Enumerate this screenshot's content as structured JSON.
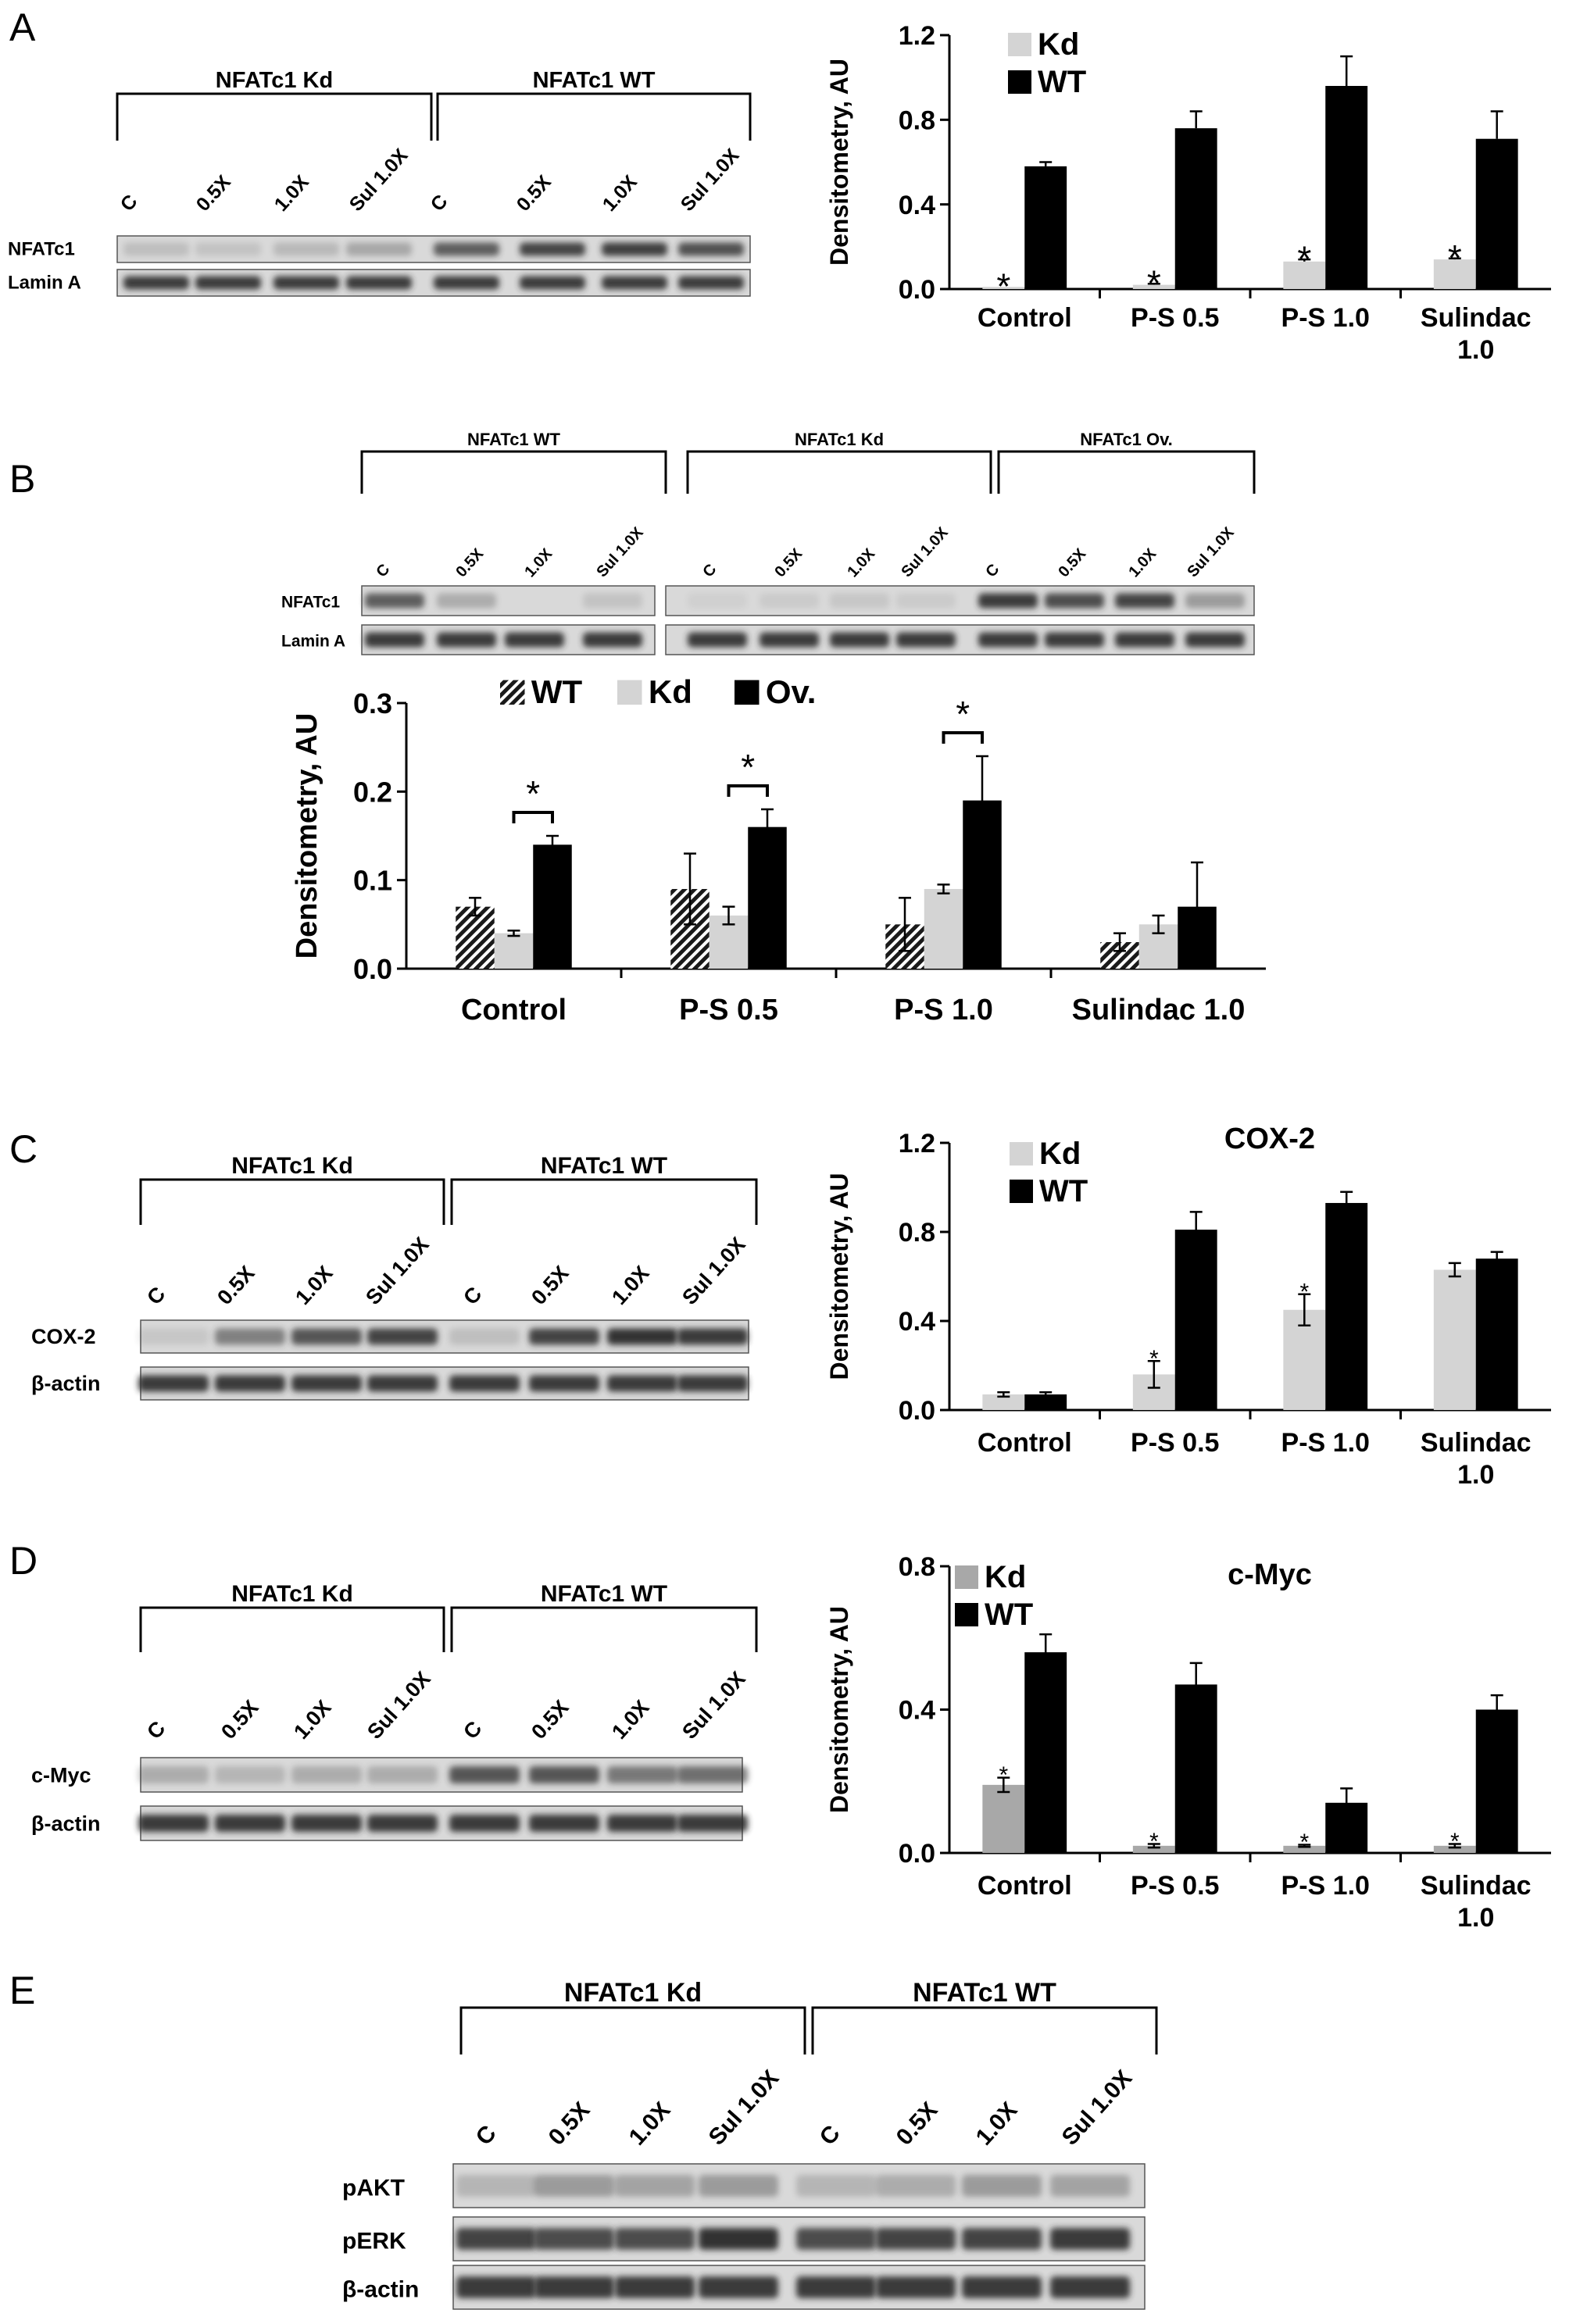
{
  "figure": {
    "panels": {
      "A": {
        "label": "A",
        "blot": {
          "groups": [
            "NFATc1 Kd",
            "NFATc1 WT"
          ],
          "lanes": [
            "C",
            "0.5X",
            "1.0X",
            "Sul 1.0X",
            "C",
            "0.5X",
            "1.0X",
            "Sul 1.0X"
          ],
          "rows": [
            "NFATc1",
            "Lamin A"
          ]
        }
      },
      "B": {
        "label": "B",
        "blot": {
          "groups": [
            "NFATc1 WT",
            "NFATc1 Kd",
            "NFATc1 Ov."
          ],
          "lanes": [
            "C",
            "0.5X",
            "1.0X",
            "Sul 1.0X",
            "C",
            "0.5X",
            "1.0X",
            "Sul 1.0X",
            "C",
            "0.5X",
            "1.0X",
            "Sul 1.0X"
          ],
          "rows": [
            "NFATc1",
            "Lamin A"
          ]
        }
      },
      "C": {
        "label": "C",
        "blot": {
          "groups": [
            "NFATc1 Kd",
            "NFATc1 WT"
          ],
          "lanes": [
            "C",
            "0.5X",
            "1.0X",
            "Sul 1.0X",
            "C",
            "0.5X",
            "1.0X",
            "Sul 1.0X"
          ],
          "rows": [
            "COX-2",
            "β-actin"
          ]
        }
      },
      "D": {
        "label": "D",
        "blot": {
          "groups": [
            "NFATc1 Kd",
            "NFATc1 WT"
          ],
          "lanes": [
            "C",
            "0.5X",
            "1.0X",
            "Sul 1.0X",
            "C",
            "0.5X",
            "1.0X",
            "Sul 1.0X"
          ],
          "rows": [
            "c-Myc",
            "β-actin"
          ]
        }
      },
      "E": {
        "label": "E",
        "blot": {
          "groups": [
            "NFATc1 Kd",
            "NFATc1 WT"
          ],
          "lanes": [
            "C",
            "0.5X",
            "1.0X",
            "Sul 1.0X",
            "C",
            "0.5X",
            "1.0X",
            "Sul 1.0X"
          ],
          "rows": [
            "pAKT",
            "pERK",
            "β-actin"
          ]
        }
      }
    },
    "colors": {
      "kd": "#d4d4d4",
      "kd_d": "#a8a8a8",
      "wt": "#000000",
      "ov": "#000000",
      "band": "#2a2a2a"
    }
  },
  "chart_data": [
    {
      "id": "A",
      "type": "bar",
      "title": "",
      "ylabel": "Densitometry, AU",
      "ylim": [
        0,
        1.2
      ],
      "yticks": [
        "0.0",
        "0.4",
        "0.8",
        "1.2"
      ],
      "categories": [
        [
          "Control"
        ],
        [
          "P-S 0.5"
        ],
        [
          "P-S 1.0"
        ],
        [
          "Sulindac",
          "1.0"
        ]
      ],
      "series": [
        {
          "name": "Kd",
          "values": [
            0.01,
            0.02,
            0.13,
            0.14
          ],
          "errors": [
            0.0,
            0.005,
            0.01,
            0.005
          ]
        },
        {
          "name": "WT",
          "values": [
            0.58,
            0.76,
            0.96,
            0.71
          ],
          "errors": [
            0.02,
            0.08,
            0.14,
            0.13
          ]
        }
      ],
      "significance": [
        {
          "text": "*",
          "category": 0,
          "series": 0
        },
        {
          "text": "*",
          "category": 1,
          "series": 0
        },
        {
          "text": "*",
          "category": 2,
          "series": 0
        },
        {
          "text": "*",
          "category": 3,
          "series": 0
        }
      ],
      "legend": "top-left"
    },
    {
      "id": "B",
      "type": "bar",
      "title": "",
      "ylabel": "Densitometry, AU",
      "ylim": [
        0,
        0.3
      ],
      "yticks": [
        "0.0",
        "0.1",
        "0.2",
        "0.3"
      ],
      "categories": [
        [
          "Control"
        ],
        [
          "P-S 0.5"
        ],
        [
          "P-S 1.0"
        ],
        [
          "Sulindac 1.0"
        ]
      ],
      "series": [
        {
          "name": "WT",
          "values": [
            0.07,
            0.09,
            0.05,
            0.03
          ],
          "errors": [
            0.01,
            0.04,
            0.03,
            0.01
          ]
        },
        {
          "name": "Kd",
          "values": [
            0.04,
            0.06,
            0.09,
            0.05
          ],
          "errors": [
            0.003,
            0.01,
            0.005,
            0.01
          ]
        },
        {
          "name": "Ov.",
          "values": [
            0.14,
            0.16,
            0.19,
            0.07
          ],
          "errors": [
            0.01,
            0.02,
            0.05,
            0.05
          ]
        }
      ],
      "significance": [
        {
          "text": "*",
          "category": 0
        },
        {
          "text": "*",
          "category": 1
        },
        {
          "text": "*",
          "category": 2
        }
      ],
      "legend": "top"
    },
    {
      "id": "C",
      "type": "bar",
      "title": "COX-2",
      "ylabel": "Densitometry, AU",
      "ylim": [
        0,
        1.2
      ],
      "yticks": [
        "0.0",
        "0.4",
        "0.8",
        "1.2"
      ],
      "categories": [
        [
          "Control"
        ],
        [
          "P-S 0.5"
        ],
        [
          "P-S 1.0"
        ],
        [
          "Sulindac",
          "1.0"
        ]
      ],
      "series": [
        {
          "name": "Kd",
          "values": [
            0.07,
            0.16,
            0.45,
            0.63
          ],
          "errors": [
            0.01,
            0.06,
            0.07,
            0.03
          ]
        },
        {
          "name": "WT",
          "values": [
            0.07,
            0.81,
            0.93,
            0.68
          ],
          "errors": [
            0.01,
            0.08,
            0.05,
            0.03
          ]
        }
      ],
      "significance": [
        {
          "text": "*",
          "category": 1,
          "series": 0
        },
        {
          "text": "*",
          "category": 2,
          "series": 0
        }
      ],
      "legend": "top-left"
    },
    {
      "id": "D",
      "type": "bar",
      "title": "c-Myc",
      "ylabel": "Densitometry, AU",
      "ylim": [
        0,
        0.8
      ],
      "yticks": [
        "0.0",
        "0.4",
        "0.8"
      ],
      "categories": [
        [
          "Control"
        ],
        [
          "P-S 0.5"
        ],
        [
          "P-S 1.0"
        ],
        [
          "Sulindac",
          "1.0"
        ]
      ],
      "series": [
        {
          "name": "Kd",
          "values": [
            0.19,
            0.02,
            0.02,
            0.02
          ],
          "errors": [
            0.02,
            0.005,
            0.003,
            0.005
          ]
        },
        {
          "name": "WT",
          "values": [
            0.56,
            0.47,
            0.14,
            0.4
          ],
          "errors": [
            0.05,
            0.06,
            0.04,
            0.04
          ]
        }
      ],
      "significance": [
        {
          "text": "*",
          "category": 0,
          "series": 0
        },
        {
          "text": "*",
          "category": 1,
          "series": 0
        },
        {
          "text": "*",
          "category": 2,
          "series": 0
        },
        {
          "text": "*",
          "category": 3,
          "series": 0
        }
      ],
      "legend": "top-left"
    }
  ]
}
